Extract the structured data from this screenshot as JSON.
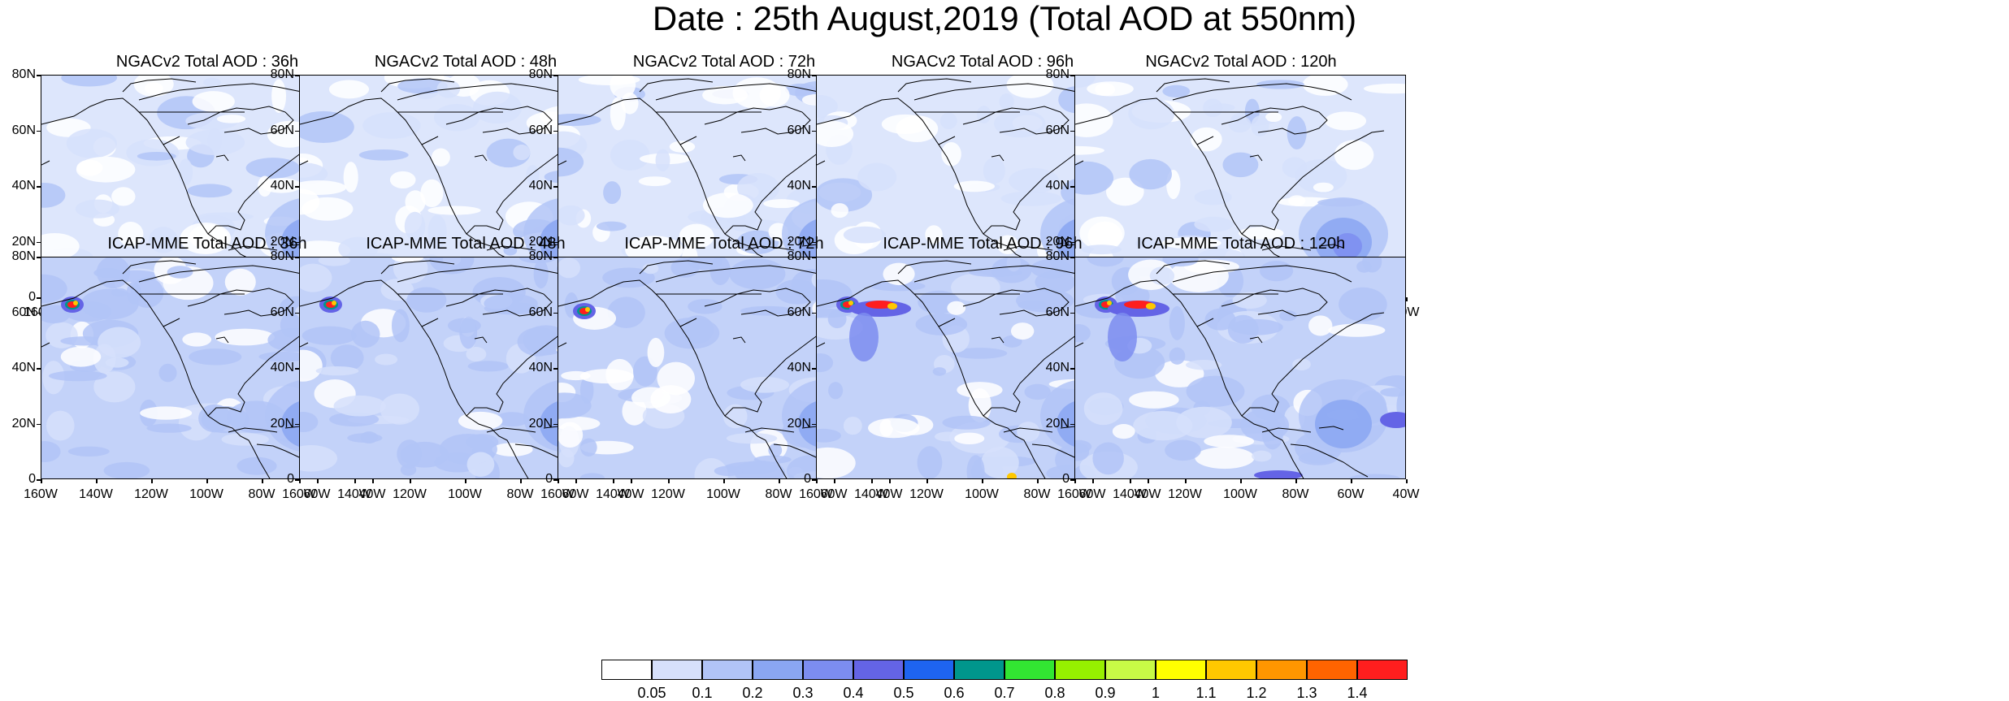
{
  "title": "Date : 25th August,2019 (Total AOD at 550nm)",
  "lat_labels": [
    "80N",
    "60N",
    "40N",
    "20N",
    "0"
  ],
  "lon_labels": [
    "160W",
    "140W",
    "120W",
    "100W",
    "80W",
    "60W",
    "40W"
  ],
  "panels": [
    {
      "title": "NGACv2 Total AOD : 36h",
      "model": "NGACv2",
      "lead": "36h"
    },
    {
      "title": "NGACv2 Total AOD : 48h",
      "model": "NGACv2",
      "lead": "48h"
    },
    {
      "title": "NGACv2 Total AOD : 72h",
      "model": "NGACv2",
      "lead": "72h"
    },
    {
      "title": "NGACv2 Total AOD : 96h",
      "model": "NGACv2",
      "lead": "96h"
    },
    {
      "title": "NGACv2 Total AOD : 120h",
      "model": "NGACv2",
      "lead": "120h"
    },
    {
      "title": "ICAP-MME Total AOD : 36h",
      "model": "ICAP-MME",
      "lead": "36h"
    },
    {
      "title": "ICAP-MME Total AOD : 48h",
      "model": "ICAP-MME",
      "lead": "48h"
    },
    {
      "title": "ICAP-MME Total AOD : 72h",
      "model": "ICAP-MME",
      "lead": "72h"
    },
    {
      "title": "ICAP-MME Total AOD : 96h",
      "model": "ICAP-MME",
      "lead": "96h"
    },
    {
      "title": "ICAP-MME Total AOD : 120h",
      "model": "ICAP-MME",
      "lead": "120h"
    }
  ],
  "colorbar": {
    "labels": [
      "0.05",
      "0.1",
      "0.2",
      "0.3",
      "0.4",
      "0.5",
      "0.6",
      "0.7",
      "0.8",
      "0.9",
      "1",
      "1.1",
      "1.2",
      "1.3",
      "1.4"
    ],
    "colors": [
      "#ffffff",
      "#d6e0fb",
      "#b1c4f7",
      "#8aa6f2",
      "#7c8df0",
      "#6464e6",
      "#1e64f0",
      "#00968c",
      "#32e632",
      "#96f000",
      "#c8fa46",
      "#ffff00",
      "#ffc800",
      "#ff9600",
      "#ff6400",
      "#ff1e1e"
    ]
  }
}
